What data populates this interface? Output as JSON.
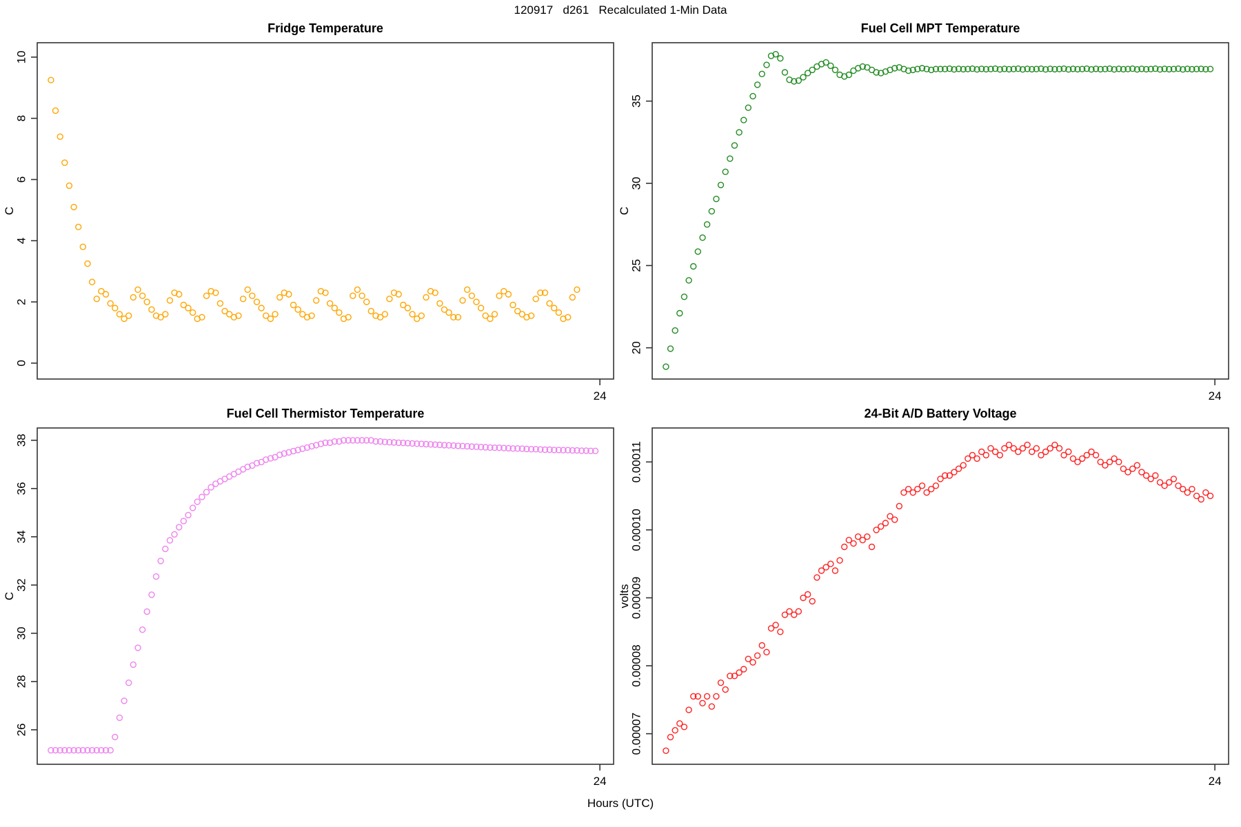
{
  "header": {
    "title": "120917   d261   Recalculated 1-Min Data"
  },
  "footer": {
    "x_axis_label": "Hours (UTC)"
  },
  "colors": {
    "fridge_points": "#ffa500",
    "mpt_points": "#228b22",
    "thermistor_points": "#ee82ee",
    "voltage_points": "#ff2222",
    "frame": "#333333"
  },
  "chart_data": [
    {
      "type": "scatter",
      "title": "Fridge Temperature",
      "xlabel": "Hours (UTC)",
      "ylabel": "C",
      "color": "#ffa500",
      "grid": false,
      "legend": "none",
      "xlim": [
        -0.6,
        24.6
      ],
      "ylim": [
        -0.52,
        10.47
      ],
      "xticks": [
        24
      ],
      "yticks": [
        0,
        2,
        4,
        6,
        8,
        10
      ],
      "x": [
        0,
        0.2,
        0.4,
        0.6,
        0.8,
        1,
        1.2,
        1.4,
        1.6,
        1.8,
        2,
        2.2,
        2.4,
        2.6,
        2.8,
        3,
        3.2,
        3.4,
        3.6,
        3.8,
        4,
        4.2,
        4.4,
        4.6,
        4.8,
        5,
        5.2,
        5.4,
        5.6,
        5.8,
        6,
        6.2,
        6.4,
        6.6,
        6.8,
        7,
        7.2,
        7.4,
        7.6,
        7.8,
        8,
        8.2,
        8.4,
        8.6,
        8.8,
        9,
        9.2,
        9.4,
        9.6,
        9.8,
        10,
        10.2,
        10.4,
        10.6,
        10.8,
        11,
        11.2,
        11.4,
        11.6,
        11.8,
        12,
        12.2,
        12.4,
        12.6,
        12.8,
        13,
        13.2,
        13.4,
        13.6,
        13.8,
        14,
        14.2,
        14.4,
        14.6,
        14.8,
        15,
        15.2,
        15.4,
        15.6,
        15.8,
        16,
        16.2,
        16.4,
        16.6,
        16.8,
        17,
        17.2,
        17.4,
        17.6,
        17.8,
        18,
        18.2,
        18.4,
        18.6,
        18.8,
        19,
        19.2,
        19.4,
        19.6,
        19.8,
        20,
        20.2,
        20.4,
        20.6,
        20.8,
        21,
        21.2,
        21.4,
        21.6,
        21.8,
        22,
        22.2,
        22.4,
        22.6,
        22.8,
        23
      ],
      "y": [
        9.25,
        8.25,
        7.4,
        6.55,
        5.8,
        5.1,
        4.45,
        3.8,
        3.25,
        2.65,
        2.1,
        2.35,
        2.25,
        1.95,
        1.8,
        1.6,
        1.45,
        1.55,
        2.15,
        2.4,
        2.2,
        2.0,
        1.75,
        1.55,
        1.5,
        1.6,
        2.05,
        2.3,
        2.25,
        1.9,
        1.8,
        1.65,
        1.45,
        1.5,
        2.2,
        2.35,
        2.3,
        1.95,
        1.7,
        1.6,
        1.5,
        1.55,
        2.1,
        2.4,
        2.2,
        2.0,
        1.8,
        1.55,
        1.45,
        1.6,
        2.15,
        2.3,
        2.25,
        1.9,
        1.75,
        1.6,
        1.5,
        1.55,
        2.05,
        2.35,
        2.3,
        1.95,
        1.8,
        1.65,
        1.45,
        1.5,
        2.2,
        2.4,
        2.2,
        2.0,
        1.7,
        1.55,
        1.5,
        1.6,
        2.1,
        2.3,
        2.25,
        1.9,
        1.8,
        1.6,
        1.45,
        1.55,
        2.15,
        2.35,
        2.3,
        1.95,
        1.75,
        1.65,
        1.5,
        1.5,
        2.05,
        2.4,
        2.2,
        2.0,
        1.8,
        1.55,
        1.45,
        1.6,
        2.2,
        2.35,
        2.25,
        1.9,
        1.7,
        1.6,
        1.5,
        1.55,
        2.1,
        2.3,
        2.3,
        1.95,
        1.8,
        1.65,
        1.45,
        1.5,
        2.15,
        2.4
      ]
    },
    {
      "type": "scatter",
      "title": "Fuel Cell MPT Temperature",
      "xlabel": "Hours (UTC)",
      "ylabel": "C",
      "color": "#228b22",
      "grid": false,
      "legend": "none",
      "xlim": [
        -0.6,
        24.6
      ],
      "ylim": [
        18.1,
        38.55
      ],
      "xticks": [
        24
      ],
      "yticks": [
        20,
        25,
        30,
        35
      ],
      "x": [
        0,
        0.2,
        0.4,
        0.6,
        0.8,
        1,
        1.2,
        1.4,
        1.6,
        1.8,
        2,
        2.2,
        2.4,
        2.6,
        2.8,
        3,
        3.2,
        3.4,
        3.6,
        3.8,
        4,
        4.2,
        4.4,
        4.6,
        4.8,
        5,
        5.2,
        5.4,
        5.6,
        5.8,
        6,
        6.2,
        6.4,
        6.6,
        6.8,
        7,
        7.2,
        7.4,
        7.6,
        7.8,
        8,
        8.2,
        8.4,
        8.6,
        8.8,
        9,
        9.2,
        9.4,
        9.6,
        9.8,
        10,
        10.2,
        10.4,
        10.6,
        10.8,
        11,
        11.2,
        11.4,
        11.6,
        11.8,
        12,
        12.2,
        12.4,
        12.6,
        12.8,
        13,
        13.2,
        13.4,
        13.6,
        13.8,
        14,
        14.2,
        14.4,
        14.6,
        14.8,
        15,
        15.2,
        15.4,
        15.6,
        15.8,
        16,
        16.2,
        16.4,
        16.6,
        16.8,
        17,
        17.2,
        17.4,
        17.6,
        17.8,
        18,
        18.2,
        18.4,
        18.6,
        18.8,
        19,
        19.2,
        19.4,
        19.6,
        19.8,
        20,
        20.2,
        20.4,
        20.6,
        20.8,
        21,
        21.2,
        21.4,
        21.6,
        21.8,
        22,
        22.2,
        22.4,
        22.6,
        22.8,
        23,
        23.2,
        23.4,
        23.6,
        23.8
      ],
      "y": [
        18.85,
        19.95,
        21.05,
        22.1,
        23.1,
        24.1,
        24.95,
        25.85,
        26.7,
        27.5,
        28.3,
        29.05,
        29.9,
        30.7,
        31.5,
        32.3,
        33.1,
        33.85,
        34.6,
        35.3,
        36.0,
        36.65,
        37.2,
        37.75,
        37.85,
        37.6,
        36.75,
        36.3,
        36.2,
        36.25,
        36.45,
        36.7,
        36.9,
        37.1,
        37.25,
        37.35,
        37.15,
        36.9,
        36.6,
        36.5,
        36.6,
        36.85,
        37.0,
        37.1,
        37.05,
        36.9,
        36.75,
        36.7,
        36.8,
        36.9,
        37.0,
        37.05,
        36.95,
        36.85,
        36.9,
        36.95,
        37.0,
        36.95,
        36.9,
        36.95,
        36.95,
        36.95,
        36.97,
        36.93,
        36.96,
        36.94,
        36.95,
        36.97,
        36.93,
        36.96,
        36.94,
        36.95,
        36.97,
        36.93,
        36.96,
        36.94,
        36.95,
        36.97,
        36.93,
        36.96,
        36.94,
        36.95,
        36.97,
        36.93,
        36.96,
        36.94,
        36.95,
        36.97,
        36.93,
        36.96,
        36.94,
        36.95,
        36.97,
        36.93,
        36.96,
        36.94,
        36.95,
        36.97,
        36.93,
        36.96,
        36.94,
        36.95,
        36.97,
        36.93,
        36.96,
        36.94,
        36.95,
        36.97,
        36.93,
        36.96,
        36.94,
        36.95,
        36.97,
        36.93,
        36.96,
        36.94,
        36.95,
        36.96,
        36.94,
        36.95
      ]
    },
    {
      "type": "scatter",
      "title": "Fuel Cell Thermistor Temperature",
      "xlabel": "Hours (UTC)",
      "ylabel": "C",
      "color": "#ee82ee",
      "grid": false,
      "legend": "none",
      "xlim": [
        -0.6,
        24.6
      ],
      "ylim": [
        24.57,
        38.51
      ],
      "xticks": [
        24
      ],
      "yticks": [
        26,
        28,
        30,
        32,
        34,
        36,
        38
      ],
      "x": [
        0,
        0.2,
        0.4,
        0.6,
        0.8,
        1,
        1.2,
        1.4,
        1.6,
        1.8,
        2,
        2.2,
        2.4,
        2.6,
        2.8,
        3,
        3.2,
        3.4,
        3.6,
        3.8,
        4,
        4.2,
        4.4,
        4.6,
        4.8,
        5,
        5.2,
        5.4,
        5.6,
        5.8,
        6,
        6.2,
        6.4,
        6.6,
        6.8,
        7,
        7.2,
        7.4,
        7.6,
        7.8,
        8,
        8.2,
        8.4,
        8.6,
        8.8,
        9,
        9.2,
        9.4,
        9.6,
        9.8,
        10,
        10.2,
        10.4,
        10.6,
        10.8,
        11,
        11.2,
        11.4,
        11.6,
        11.8,
        12,
        12.2,
        12.4,
        12.6,
        12.8,
        13,
        13.2,
        13.4,
        13.6,
        13.8,
        14,
        14.2,
        14.4,
        14.6,
        14.8,
        15,
        15.2,
        15.4,
        15.6,
        15.8,
        16,
        16.2,
        16.4,
        16.6,
        16.8,
        17,
        17.2,
        17.4,
        17.6,
        17.8,
        18,
        18.2,
        18.4,
        18.6,
        18.8,
        19,
        19.2,
        19.4,
        19.6,
        19.8,
        20,
        20.2,
        20.4,
        20.6,
        20.8,
        21,
        21.2,
        21.4,
        21.6,
        21.8,
        22,
        22.2,
        22.4,
        22.6,
        22.8,
        23,
        23.2,
        23.4,
        23.6,
        23.8
      ],
      "y": [
        25.15,
        25.15,
        25.15,
        25.15,
        25.15,
        25.15,
        25.15,
        25.15,
        25.15,
        25.15,
        25.15,
        25.15,
        25.15,
        25.15,
        25.7,
        26.5,
        27.2,
        27.95,
        28.7,
        29.4,
        30.15,
        30.9,
        31.6,
        32.35,
        33.0,
        33.5,
        33.85,
        34.1,
        34.4,
        34.65,
        34.9,
        35.2,
        35.45,
        35.65,
        35.85,
        36.05,
        36.2,
        36.3,
        36.4,
        36.5,
        36.6,
        36.7,
        36.8,
        36.9,
        36.95,
        37.05,
        37.1,
        37.2,
        37.25,
        37.3,
        37.4,
        37.45,
        37.5,
        37.55,
        37.6,
        37.65,
        37.7,
        37.75,
        37.8,
        37.85,
        37.9,
        37.9,
        37.95,
        37.95,
        38.0,
        38.0,
        38.0,
        38.0,
        38.0,
        38.0,
        38.0,
        37.95,
        37.95,
        37.93,
        37.92,
        37.91,
        37.9,
        37.89,
        37.88,
        37.87,
        37.86,
        37.85,
        37.84,
        37.83,
        37.82,
        37.81,
        37.8,
        37.79,
        37.78,
        37.77,
        37.76,
        37.75,
        37.74,
        37.73,
        37.72,
        37.71,
        37.7,
        37.69,
        37.69,
        37.68,
        37.67,
        37.66,
        37.66,
        37.65,
        37.64,
        37.63,
        37.63,
        37.62,
        37.61,
        37.61,
        37.6,
        37.6,
        37.59,
        37.59,
        37.58,
        37.58,
        37.57,
        37.57,
        37.56,
        37.56
      ]
    },
    {
      "type": "scatter",
      "title": "24-Bit A/D Battery Voltage",
      "xlabel": "Hours (UTC)",
      "ylabel": "volts",
      "color": "#ff2222",
      "grid": false,
      "legend": "none",
      "xlim": [
        -0.6,
        24.6
      ],
      "ylim": [
        6.55e-05,
        0.000115
      ],
      "xticks": [
        24
      ],
      "yticks": [
        7e-05,
        8e-05,
        9e-05,
        0.0001,
        0.00011
      ],
      "ytick_labels": [
        "0.00007",
        "0.00008",
        "0.00009",
        "0.00010",
        "0.00011"
      ],
      "x": [
        0,
        0.2,
        0.4,
        0.6,
        0.8,
        1,
        1.2,
        1.4,
        1.6,
        1.8,
        2,
        2.2,
        2.4,
        2.6,
        2.8,
        3,
        3.2,
        3.4,
        3.6,
        3.8,
        4,
        4.2,
        4.4,
        4.6,
        4.8,
        5,
        5.2,
        5.4,
        5.6,
        5.8,
        6,
        6.2,
        6.4,
        6.6,
        6.8,
        7,
        7.2,
        7.4,
        7.6,
        7.8,
        8,
        8.2,
        8.4,
        8.6,
        8.8,
        9,
        9.2,
        9.4,
        9.6,
        9.8,
        10,
        10.2,
        10.4,
        10.6,
        10.8,
        11,
        11.2,
        11.4,
        11.6,
        11.8,
        12,
        12.2,
        12.4,
        12.6,
        12.8,
        13,
        13.2,
        13.4,
        13.6,
        13.8,
        14,
        14.2,
        14.4,
        14.6,
        14.8,
        15,
        15.2,
        15.4,
        15.6,
        15.8,
        16,
        16.2,
        16.4,
        16.6,
        16.8,
        17,
        17.2,
        17.4,
        17.6,
        17.8,
        18,
        18.2,
        18.4,
        18.6,
        18.8,
        19,
        19.2,
        19.4,
        19.6,
        19.8,
        20,
        20.2,
        20.4,
        20.6,
        20.8,
        21,
        21.2,
        21.4,
        21.6,
        21.8,
        22,
        22.2,
        22.4,
        22.6,
        22.8,
        23,
        23.2,
        23.4,
        23.6,
        23.8
      ],
      "y": [
        6.75e-05,
        6.95e-05,
        7.05e-05,
        7.15e-05,
        7.1e-05,
        7.35e-05,
        7.55e-05,
        7.55e-05,
        7.45e-05,
        7.55e-05,
        7.4e-05,
        7.55e-05,
        7.75e-05,
        7.65e-05,
        7.85e-05,
        7.85e-05,
        7.9e-05,
        7.95e-05,
        8.1e-05,
        8.05e-05,
        8.15e-05,
        8.3e-05,
        8.2e-05,
        8.55e-05,
        8.6e-05,
        8.5e-05,
        8.75e-05,
        8.8e-05,
        8.75e-05,
        8.8e-05,
        9e-05,
        9.05e-05,
        8.95e-05,
        9.3e-05,
        9.4e-05,
        9.45e-05,
        9.5e-05,
        9.4e-05,
        9.55e-05,
        9.75e-05,
        9.85e-05,
        9.8e-05,
        9.9e-05,
        9.85e-05,
        9.9e-05,
        9.75e-05,
        0.0001,
        0.0001005,
        0.000101,
        0.000102,
        0.0001015,
        0.0001035,
        0.0001055,
        0.000106,
        0.0001055,
        0.000106,
        0.0001065,
        0.0001055,
        0.000106,
        0.0001065,
        0.0001075,
        0.000108,
        0.000108,
        0.0001085,
        0.000109,
        0.0001095,
        0.0001105,
        0.000111,
        0.0001105,
        0.0001115,
        0.000111,
        0.000112,
        0.0001115,
        0.000111,
        0.000112,
        0.0001125,
        0.000112,
        0.0001115,
        0.000112,
        0.0001125,
        0.0001115,
        0.000112,
        0.000111,
        0.0001115,
        0.000112,
        0.0001125,
        0.000112,
        0.000111,
        0.0001115,
        0.0001105,
        0.00011,
        0.0001105,
        0.000111,
        0.0001115,
        0.000111,
        0.00011,
        0.0001095,
        0.00011,
        0.0001105,
        0.00011,
        0.000109,
        0.0001085,
        0.000109,
        0.0001095,
        0.0001085,
        0.000108,
        0.0001075,
        0.000108,
        0.000107,
        0.0001065,
        0.000107,
        0.0001075,
        0.0001065,
        0.000106,
        0.0001055,
        0.000106,
        0.000105,
        0.0001045,
        0.0001055,
        0.000105
      ]
    }
  ]
}
